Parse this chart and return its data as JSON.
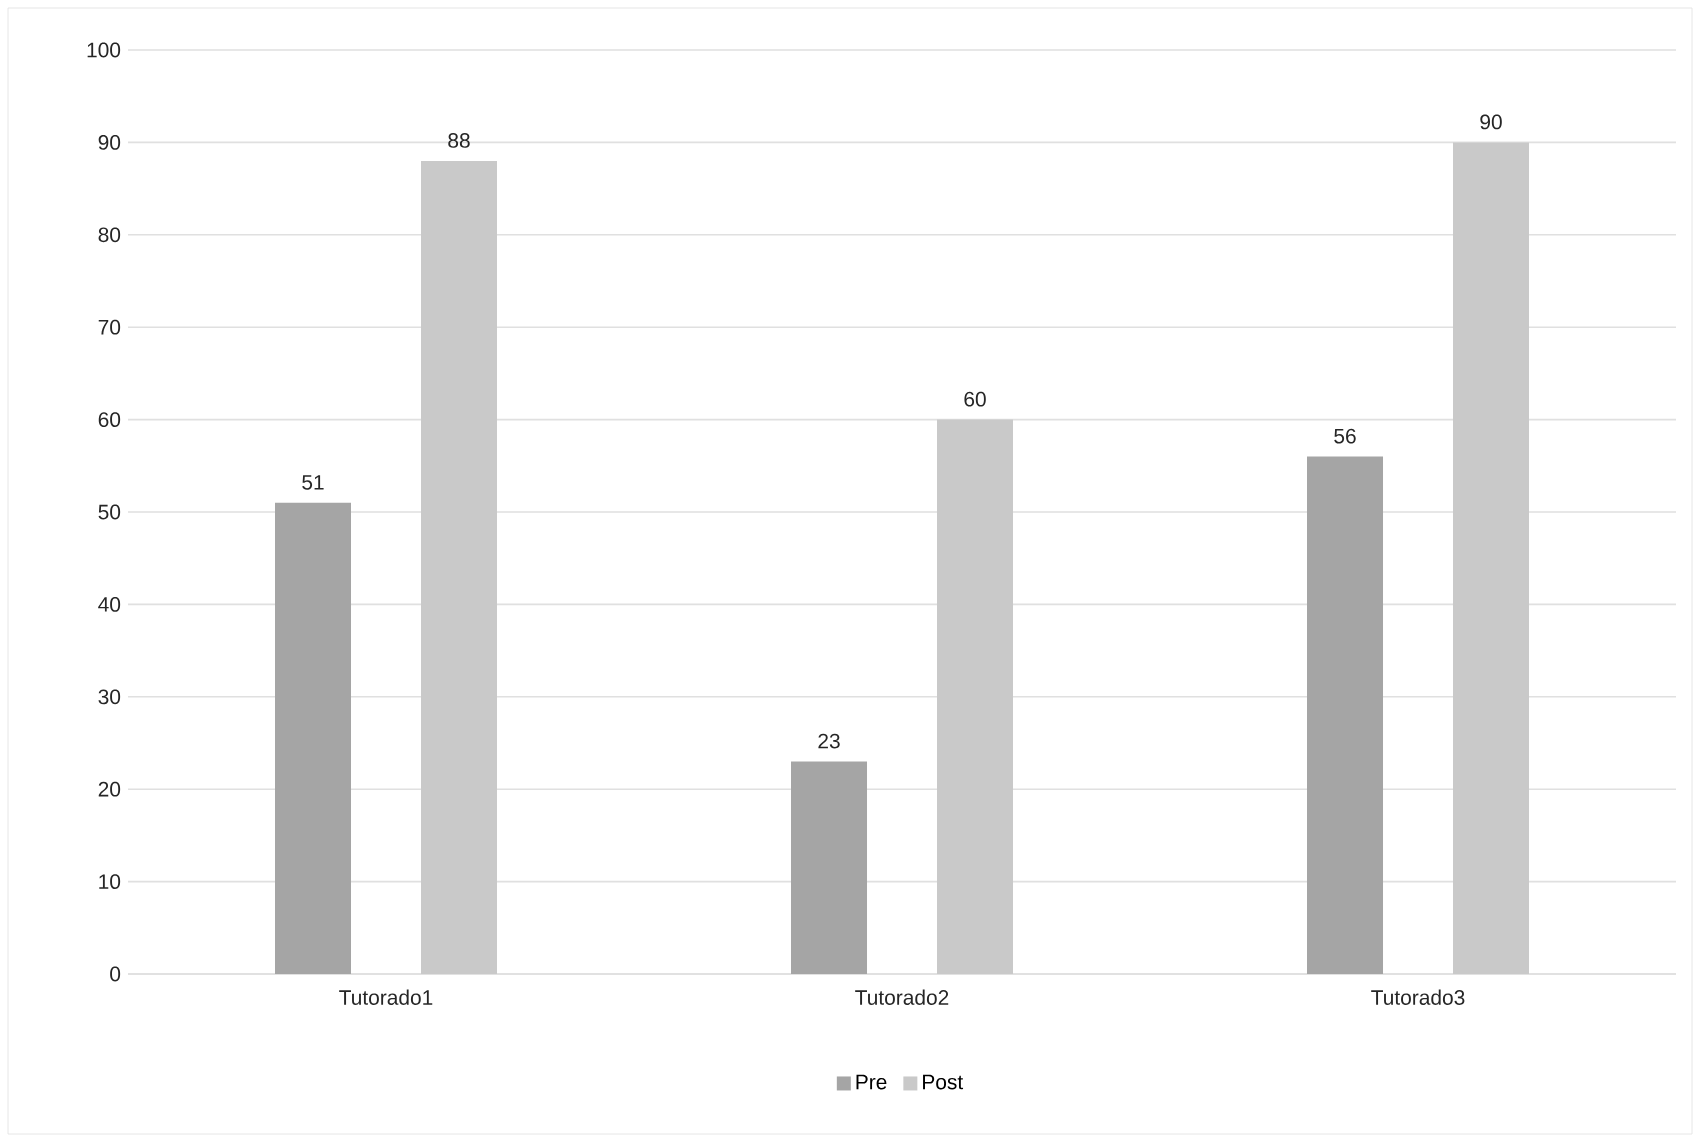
{
  "chart_data": {
    "type": "bar",
    "categories": [
      "Tutorado1",
      "Tutorado2",
      "Tutorado3"
    ],
    "series": [
      {
        "name": "Pre",
        "color": "#a5a5a5",
        "values": [
          51,
          23,
          56
        ]
      },
      {
        "name": "Post",
        "color": "#c9c9c9",
        "values": [
          88,
          60,
          90
        ]
      }
    ],
    "ylim": [
      0,
      100
    ],
    "yticks": [
      0,
      10,
      20,
      30,
      40,
      50,
      60,
      70,
      80,
      90,
      100
    ],
    "grid": "y",
    "legend": "bottom",
    "data_labels": true
  }
}
